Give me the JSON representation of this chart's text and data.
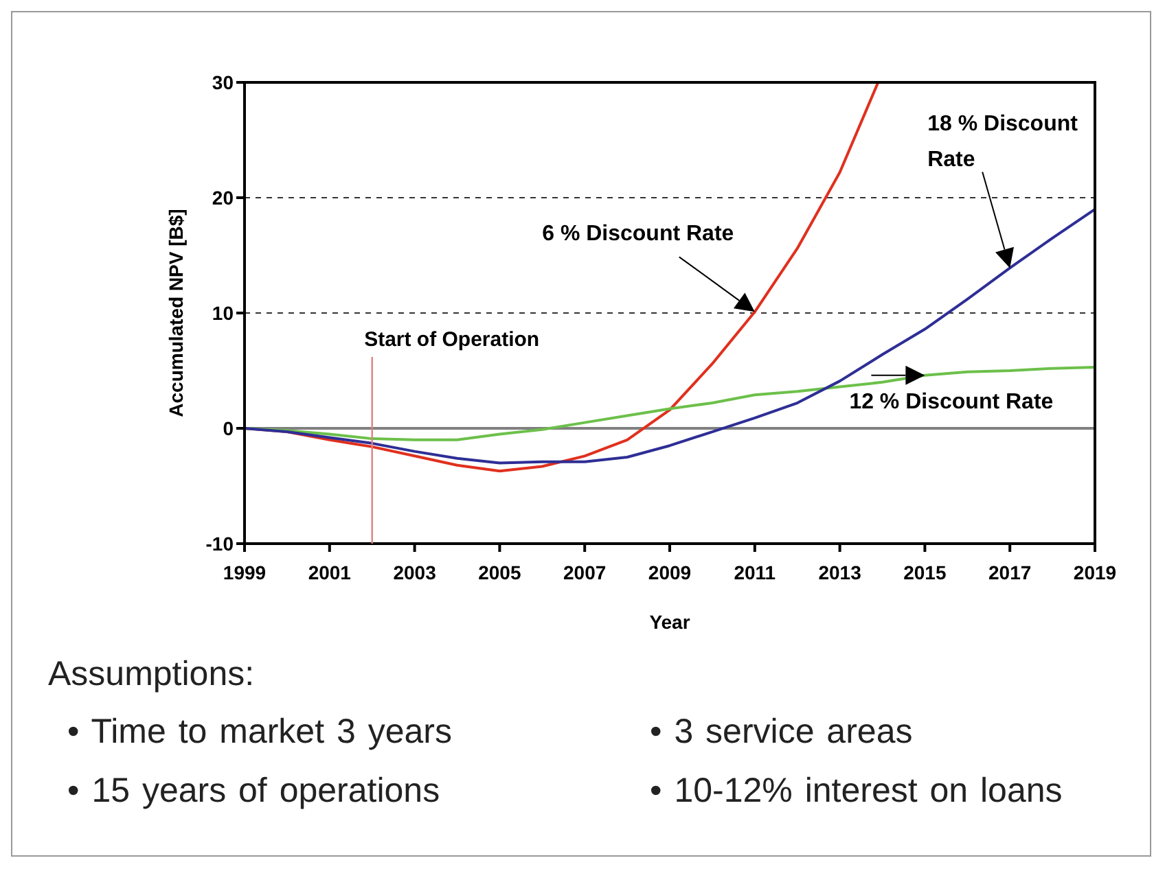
{
  "chart_data": {
    "type": "line",
    "xlabel": "Year",
    "ylabel": "Accumulated NPV [B$]",
    "x": [
      1999,
      2000,
      2001,
      2002,
      2003,
      2004,
      2005,
      2006,
      2007,
      2008,
      2009,
      2010,
      2011,
      2012,
      2013,
      2014,
      2015,
      2016,
      2017,
      2018,
      2019
    ],
    "series": [
      {
        "name": "6 % Discount Rate",
        "color": "#e0301e",
        "x": [
          1999,
          2000,
          2001,
          2002,
          2003,
          2004,
          2005,
          2006,
          2007,
          2008,
          2009,
          2010,
          2011,
          2012,
          2013,
          2013.9
        ],
        "values": [
          0,
          -0.3,
          -1,
          -1.6,
          -2.4,
          -3.2,
          -3.7,
          -3.3,
          -2.4,
          -1,
          1.6,
          5.6,
          10.1,
          15.6,
          22.2,
          30
        ]
      },
      {
        "name": "12 % Discount Rate",
        "color": "#6cc04a",
        "values": [
          0,
          -0.2,
          -0.5,
          -0.9,
          -1,
          -1,
          -0.5,
          -0.1,
          0.5,
          1.1,
          1.7,
          2.2,
          2.9,
          3.2,
          3.6,
          4,
          4.6,
          4.9,
          5,
          5.2,
          5.3
        ]
      },
      {
        "name": "18 % Discount Rate",
        "color": "#2e2e96",
        "values": [
          0,
          -0.3,
          -0.8,
          -1.3,
          -2,
          -2.6,
          -3,
          -2.9,
          -2.9,
          -2.5,
          -1.5,
          -0.3,
          0.9,
          2.2,
          4.1,
          6.4,
          8.6,
          11.2,
          13.9,
          16.5,
          19
        ]
      }
    ],
    "xlim": [
      1999,
      2019
    ],
    "xticks": [
      1999,
      2001,
      2003,
      2005,
      2007,
      2009,
      2011,
      2013,
      2015,
      2017,
      2019
    ],
    "ylim": [
      -10,
      30
    ],
    "yticks": [
      -10,
      0,
      10,
      20,
      30
    ],
    "grid": "y",
    "legend": false,
    "marker": "none",
    "line_style": "solid",
    "ref_lines": [
      {
        "axis": "y",
        "value": 0,
        "label": null,
        "color": "#808080"
      },
      {
        "axis": "x",
        "value": 2002,
        "label": "Start of Operation",
        "color": "#e08080"
      }
    ],
    "annotations": [
      "Assumptions:",
      "• Time to market 3 years",
      "• 15 years of operations",
      "• 3 service areas",
      "• 10-12% interest on loans"
    ]
  }
}
